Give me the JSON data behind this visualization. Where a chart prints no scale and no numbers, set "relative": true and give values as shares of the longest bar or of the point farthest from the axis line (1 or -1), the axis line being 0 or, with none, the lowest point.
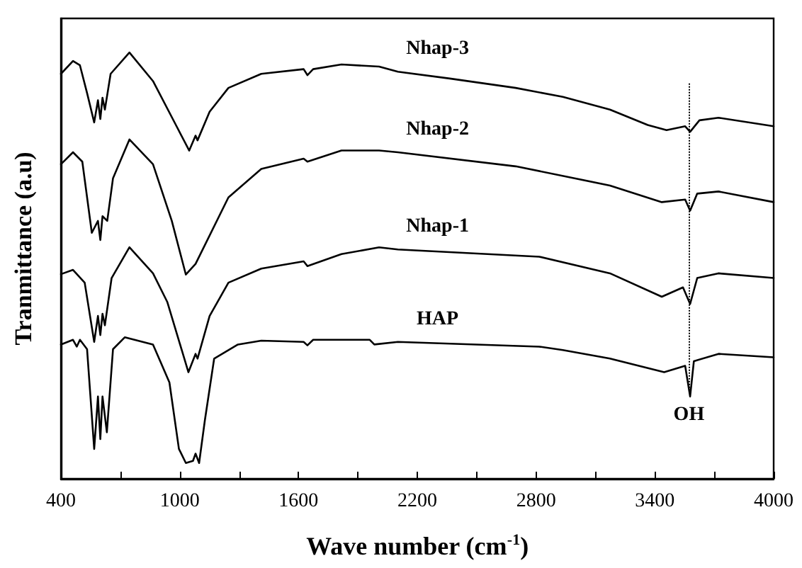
{
  "chart_data": {
    "type": "line",
    "relative": true,
    "xlabel": "Wave number (cm$^{-1}$)",
    "ylabel": "Tranmittance (a.u)",
    "xlim": [
      400,
      4000
    ],
    "xticks": [
      400,
      {
        "value": 700,
        "label": null
      },
      1000,
      {
        "value": 1300,
        "label": null
      },
      1600,
      {
        "value": 1900,
        "label": null
      },
      2200,
      {
        "value": 2500,
        "label": null
      },
      2800,
      {
        "value": 3100,
        "label": null
      },
      3400,
      {
        "value": 3700,
        "label": null
      },
      4000
    ],
    "grid": false,
    "legend": false,
    "marker": "none",
    "line_style": "solid",
    "ref_lines": [
      {
        "axis": "x",
        "value": 3572,
        "label": "OH",
        "line_style": "dotted",
        "color": "#000000"
      }
    ],
    "series": [
      {
        "name": "Nhap-3",
        "color": "#000000",
        "x": [
          400,
          461,
          496,
          532,
          568,
          587,
          599,
          610,
          622,
          651,
          746,
          865,
          984,
          1048,
          1080,
          1090,
          1151,
          1246,
          1412,
          1626,
          1645,
          1674,
          1817,
          2007,
          2102,
          2364,
          2697,
          2935,
          3173,
          3364,
          3459,
          3553,
          3578,
          3625,
          3721,
          4000
        ],
        "values": [
          0.95,
          0.98,
          0.97,
          0.905,
          0.836,
          0.888,
          0.844,
          0.894,
          0.866,
          0.95,
          1.0,
          0.933,
          0.827,
          0.77,
          0.805,
          0.794,
          0.861,
          0.917,
          0.95,
          0.961,
          0.947,
          0.961,
          0.972,
          0.967,
          0.955,
          0.939,
          0.917,
          0.896,
          0.866,
          0.83,
          0.818,
          0.827,
          0.814,
          0.841,
          0.847,
          0.827
        ]
      },
      {
        "name": "Nhap-2",
        "color": "#000000",
        "x": [
          400,
          461,
          508,
          556,
          587,
          599,
          610,
          634,
          663,
          746,
          865,
          960,
          1031,
          1080,
          1246,
          1412,
          1626,
          1645,
          1817,
          2007,
          2102,
          2697,
          3173,
          3435,
          3553,
          3578,
          3614,
          3721,
          4000
        ],
        "values": [
          0.738,
          0.766,
          0.744,
          0.577,
          0.605,
          0.56,
          0.616,
          0.605,
          0.705,
          0.796,
          0.738,
          0.605,
          0.479,
          0.504,
          0.66,
          0.727,
          0.751,
          0.744,
          0.77,
          0.77,
          0.766,
          0.733,
          0.688,
          0.649,
          0.655,
          0.629,
          0.669,
          0.674,
          0.649
        ]
      },
      {
        "name": "Nhap-1",
        "color": "#000000",
        "x": [
          400,
          461,
          520,
          568,
          587,
          599,
          610,
          622,
          656,
          746,
          865,
          937,
          1044,
          1080,
          1090,
          1151,
          1246,
          1412,
          1626,
          1645,
          1817,
          2007,
          2102,
          2816,
          3173,
          3435,
          3542,
          3578,
          3614,
          3721,
          4000
        ],
        "values": [
          0.48,
          0.49,
          0.46,
          0.321,
          0.382,
          0.337,
          0.387,
          0.36,
          0.471,
          0.543,
          0.482,
          0.415,
          0.25,
          0.293,
          0.282,
          0.382,
          0.46,
          0.493,
          0.51,
          0.499,
          0.527,
          0.543,
          0.538,
          0.521,
          0.482,
          0.427,
          0.449,
          0.41,
          0.471,
          0.482,
          0.471
        ]
      },
      {
        "name": "HAP",
        "color": "#000000",
        "x": [
          400,
          461,
          480,
          496,
          532,
          568,
          587,
          599,
          610,
          632,
          663,
          723,
          865,
          948,
          960,
          996,
          1031,
          1067,
          1080,
          1098,
          1127,
          1174,
          1294,
          1412,
          1626,
          1645,
          1674,
          1960,
          1983,
          2102,
          2816,
          2935,
          3173,
          3447,
          3553,
          3578,
          3597,
          3721,
          4000
        ],
        "values": [
          0.315,
          0.326,
          0.31,
          0.326,
          0.304,
          0.07,
          0.193,
          0.093,
          0.193,
          0.109,
          0.304,
          0.332,
          0.315,
          0.226,
          0.187,
          0.07,
          0.037,
          0.042,
          0.059,
          0.037,
          0.137,
          0.282,
          0.315,
          0.324,
          0.321,
          0.313,
          0.326,
          0.326,
          0.315,
          0.321,
          0.31,
          0.302,
          0.282,
          0.25,
          0.265,
          0.193,
          0.276,
          0.293,
          0.285
        ]
      }
    ]
  }
}
